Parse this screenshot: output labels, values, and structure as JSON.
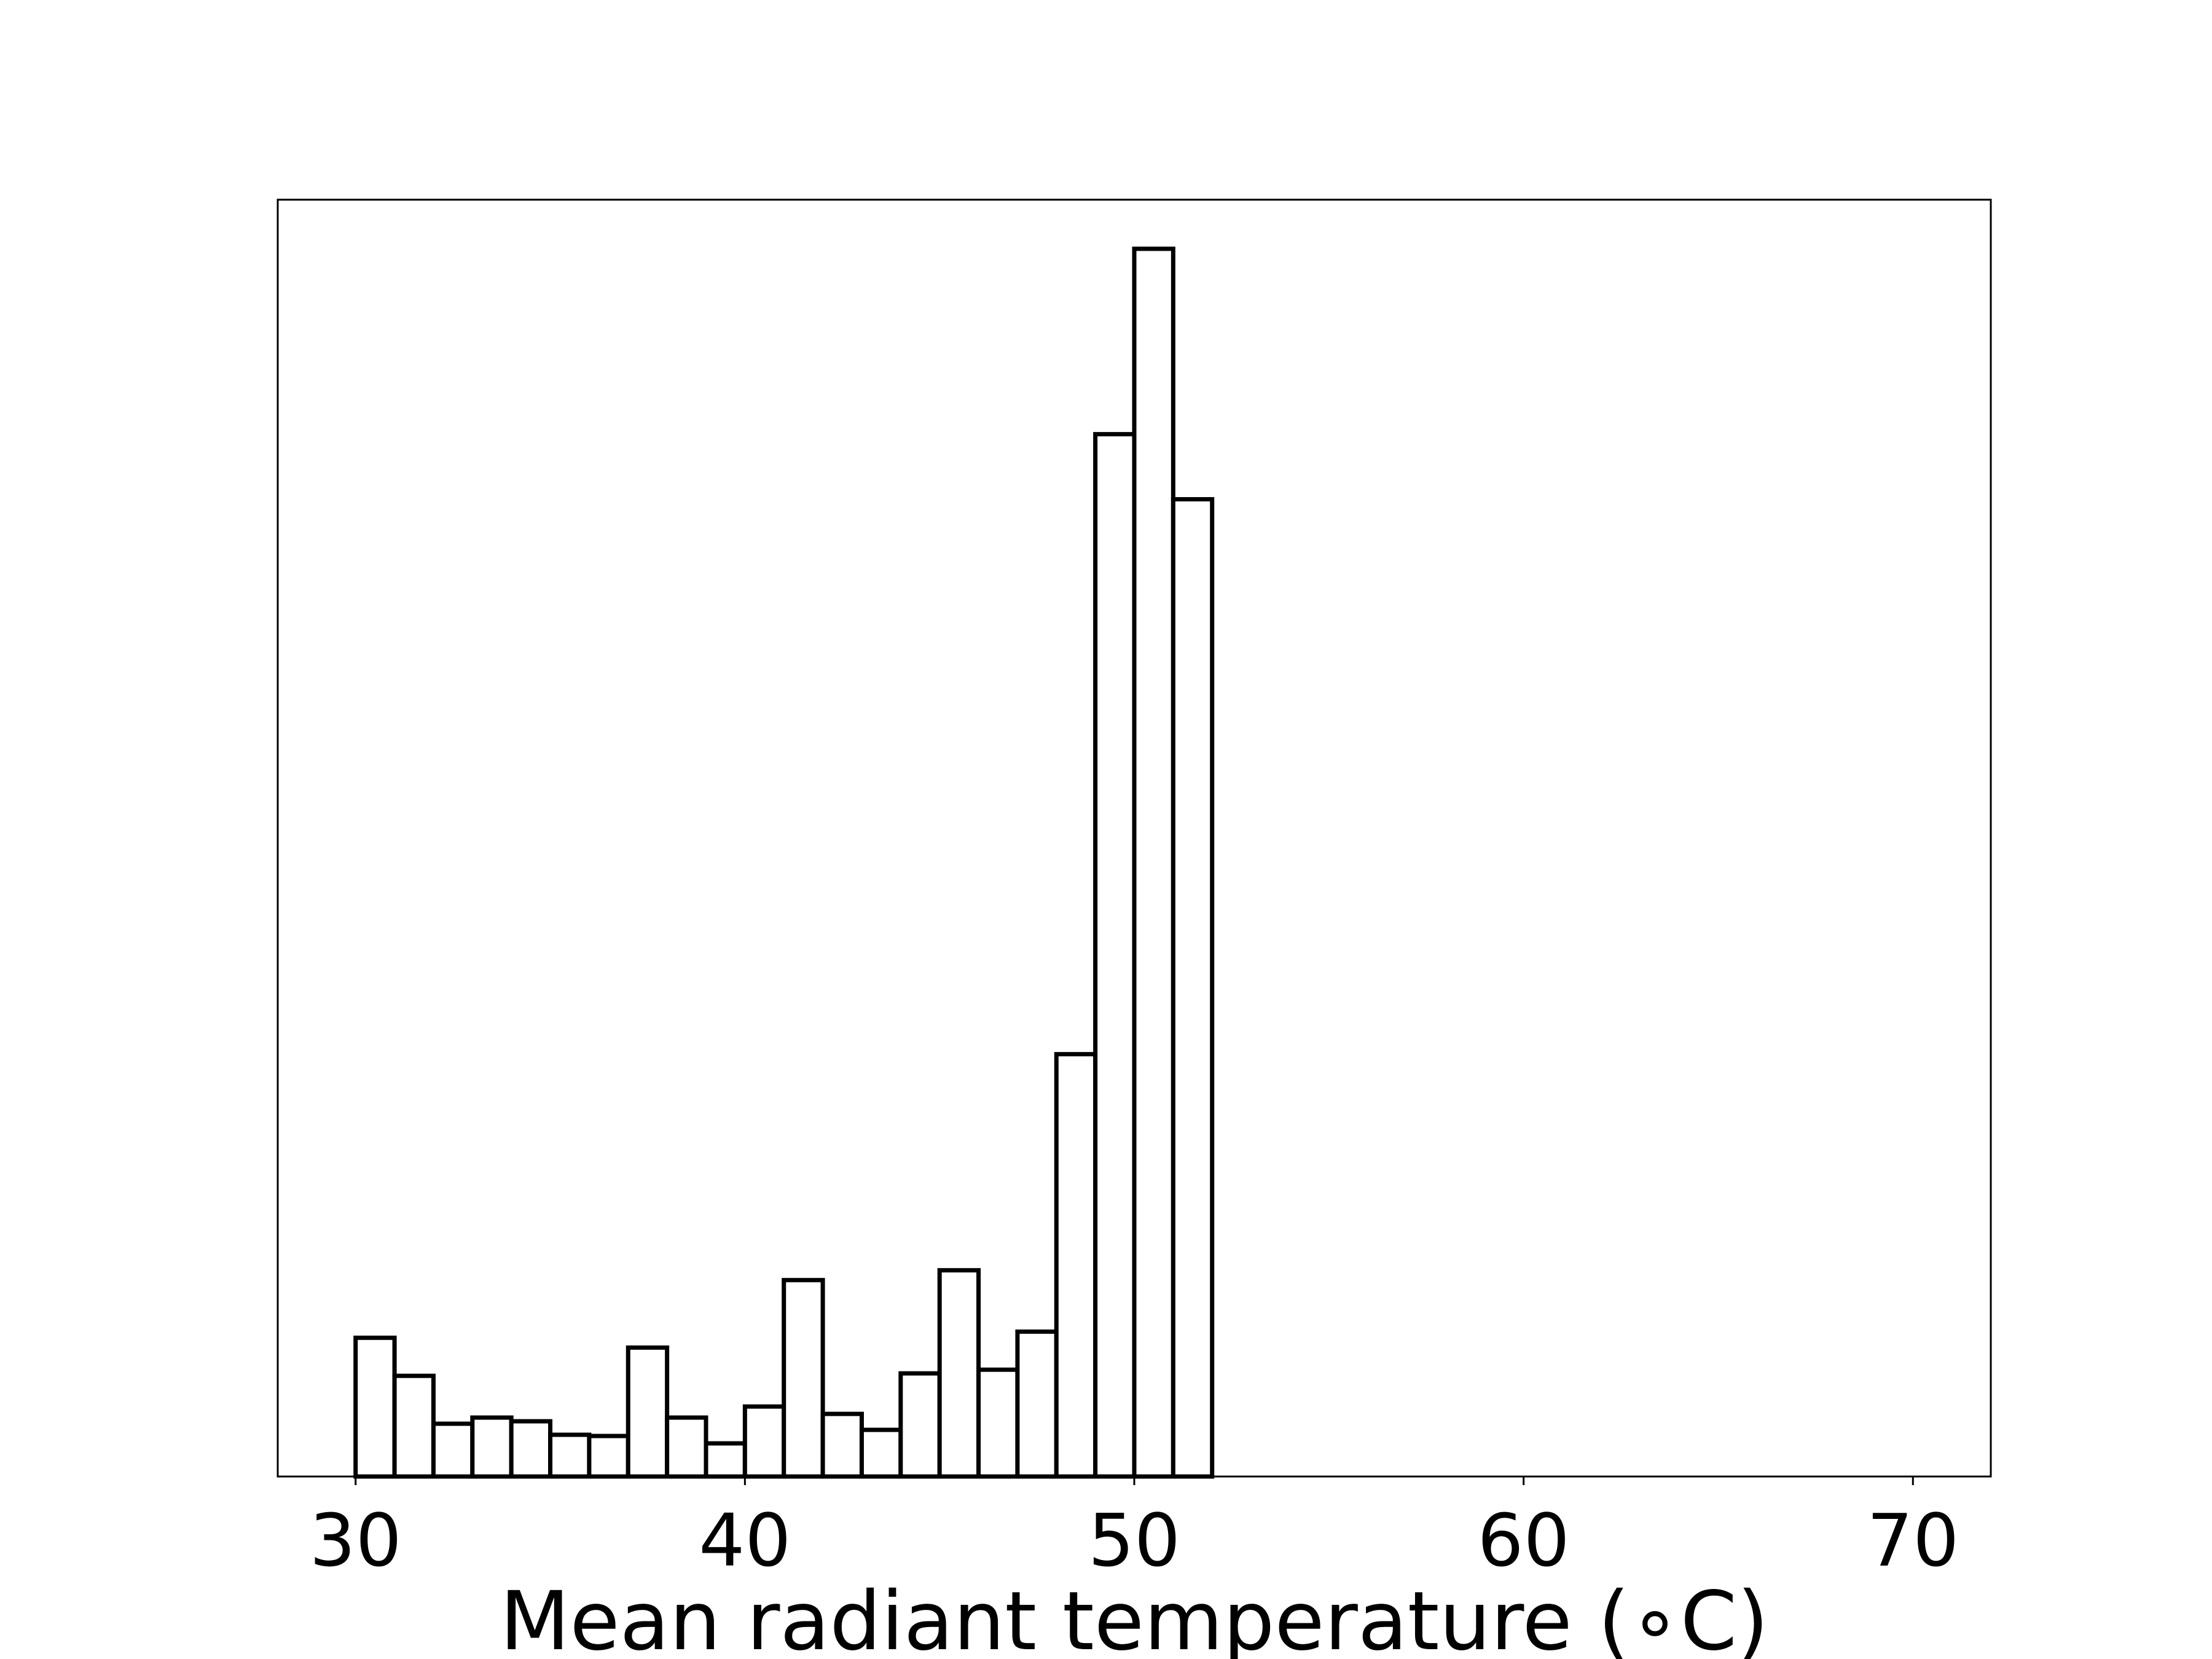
{
  "chart_data": {
    "type": "histogram",
    "xlabel": "Mean radiant temperature ($^\\circ$C)",
    "xlabel_display": "Mean radiant temperature (∘C)",
    "ylabel": "",
    "title": "",
    "xlim": [
      28,
      72
    ],
    "ylim": [
      0,
      1.04
    ],
    "y_ticks_shown": false,
    "grid": false,
    "bar_fill": "#ffffff",
    "bar_edge": "#000000",
    "bin_edges": [
      30,
      31,
      32,
      33,
      34,
      35,
      36,
      37,
      38,
      39,
      40,
      41,
      42,
      43,
      44,
      45,
      46,
      47,
      48,
      49,
      50,
      51,
      52,
      53,
      54,
      55,
      56,
      57,
      58,
      59,
      60,
      61,
      62,
      63,
      64,
      65,
      66,
      67,
      68,
      69,
      70
    ],
    "values": [
      0.113,
      0.082,
      0.043,
      0.048,
      0.045,
      0.034,
      0.033,
      0.105,
      0.048,
      0.027,
      0.057,
      0.16,
      0.051,
      0.038,
      0.084,
      0.168,
      0.087,
      0.118,
      0.344,
      0.849,
      1.0,
      0.796,
      0,
      0,
      0,
      0,
      0,
      0,
      0,
      0,
      0,
      0,
      0,
      0,
      0,
      0,
      0,
      0,
      0,
      0
    ],
    "x_ticks": [
      {
        "value": 30,
        "label": "30"
      },
      {
        "value": 40,
        "label": "40"
      },
      {
        "value": 50,
        "label": "50"
      },
      {
        "value": 60,
        "label": "60"
      },
      {
        "value": 70,
        "label": "70"
      }
    ]
  }
}
